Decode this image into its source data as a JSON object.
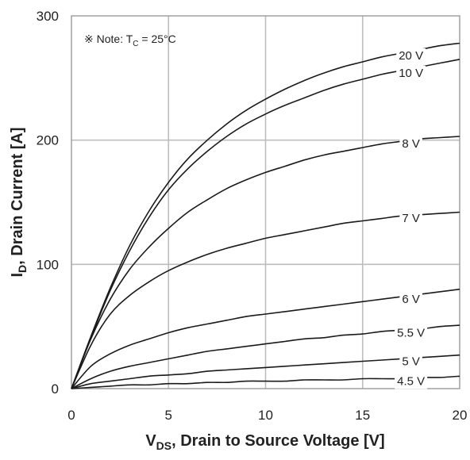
{
  "chart_data": {
    "type": "line",
    "note": "※ Note: T",
    "note_sub": "C",
    "note_tail": " = 25°C",
    "xlabel": "V",
    "xlabel_sub": "DS",
    "xlabel_tail": ", Drain to Source Voltage [V]",
    "ylabel": "I",
    "ylabel_sub": "D",
    "ylabel_tail": ", Drain Current [A]",
    "xlim": [
      0,
      20
    ],
    "ylim": [
      0,
      300
    ],
    "x_ticks": [
      "0",
      "5",
      "10",
      "15",
      "20"
    ],
    "y_ticks": [
      "0",
      "100",
      "200",
      "300"
    ],
    "x_tick_values": [
      0,
      5,
      10,
      15,
      20
    ],
    "y_tick_values": [
      0,
      100,
      200,
      300
    ],
    "grid": true,
    "x": [
      0,
      1,
      2,
      3,
      4,
      5,
      6,
      7,
      8,
      9,
      10,
      11,
      12,
      13,
      14,
      15,
      16,
      17,
      18,
      19,
      20
    ],
    "series": [
      {
        "name": "20 V",
        "values": [
          0,
          42,
          81,
          115,
          143,
          166,
          185,
          200,
          213,
          224,
          233,
          241,
          248,
          254,
          259,
          263,
          267,
          270,
          273,
          276,
          278
        ]
      },
      {
        "name": "10 V",
        "values": [
          0,
          41,
          79,
          111,
          138,
          160,
          177,
          191,
          203,
          213,
          221,
          228,
          234,
          240,
          245,
          249,
          253,
          256,
          259,
          262,
          265
        ]
      },
      {
        "name": "8 V",
        "values": [
          0,
          40,
          72,
          96,
          114,
          129,
          142,
          152,
          161,
          168,
          174,
          179,
          184,
          188,
          191,
          194,
          197,
          199,
          201,
          202,
          203
        ]
      },
      {
        "name": "7 V",
        "values": [
          0,
          35,
          60,
          75,
          86,
          95,
          102,
          108,
          113,
          117,
          121,
          124,
          127,
          130,
          133,
          135,
          137,
          139,
          140,
          141,
          142
        ]
      },
      {
        "name": "6 V",
        "values": [
          0,
          18,
          28,
          35,
          40,
          45,
          49,
          52,
          55,
          58,
          60,
          62,
          64,
          66,
          68,
          70,
          72,
          74,
          76,
          78,
          80
        ]
      },
      {
        "name": "5.5 V",
        "values": [
          0,
          8,
          14,
          18,
          21,
          24,
          27,
          30,
          32,
          34,
          36,
          38,
          40,
          41,
          43,
          44,
          46,
          47,
          48,
          50,
          51
        ]
      },
      {
        "name": "5 V",
        "values": [
          0,
          4,
          6,
          8,
          10,
          11,
          12,
          14,
          15,
          16,
          17,
          18,
          19,
          20,
          21,
          22,
          23,
          24,
          25,
          26,
          27
        ]
      },
      {
        "name": "4.5 V",
        "values": [
          0,
          1,
          2,
          3,
          3,
          4,
          4,
          5,
          5,
          6,
          6,
          6,
          7,
          7,
          7,
          8,
          8,
          8,
          9,
          9,
          10
        ]
      }
    ]
  }
}
